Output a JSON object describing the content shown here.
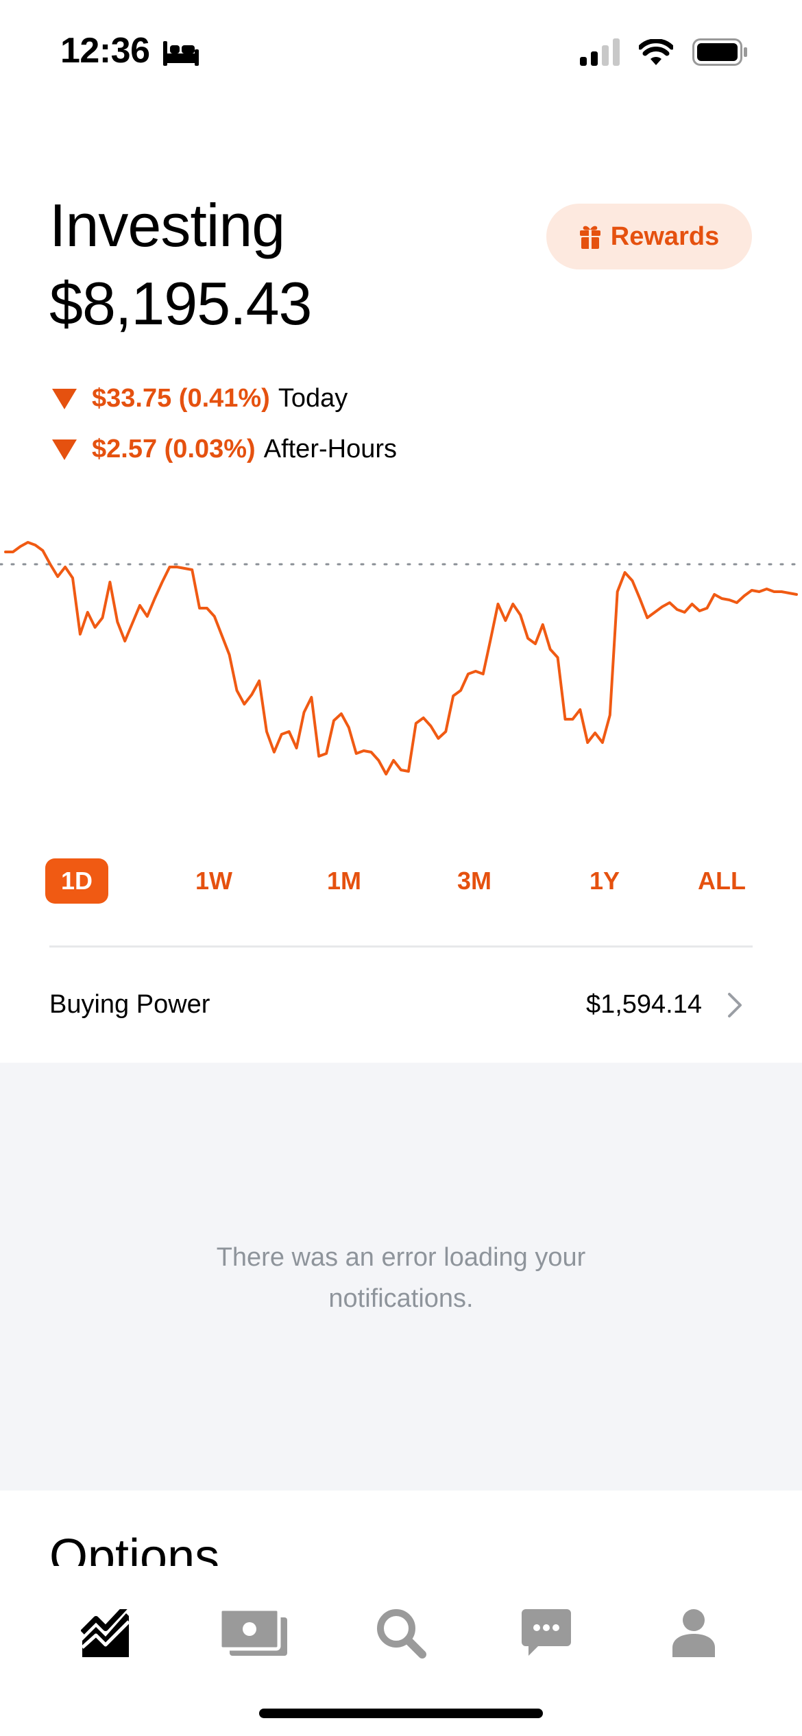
{
  "status_bar": {
    "time": "12:36",
    "focus_icon": "bed-icon",
    "signal_icon": "cellular-signal-icon",
    "wifi_icon": "wifi-icon",
    "battery_icon": "battery-icon"
  },
  "header": {
    "title": "Investing",
    "portfolio_value": "$8,195.43",
    "rewards_label": "Rewards",
    "rewards_icon": "gift-icon"
  },
  "changes": [
    {
      "amount": "$33.75 (0.41%)",
      "label": "Today",
      "direction": "down"
    },
    {
      "amount": "$2.57 (0.03%)",
      "label": "After-Hours",
      "direction": "down"
    }
  ],
  "chart_data": {
    "type": "line",
    "values": [
      18.5,
      18.5,
      18.9,
      19.2,
      19.0,
      18.6,
      17.6,
      16.7,
      17.4,
      16.6,
      12.5,
      14.1,
      13.0,
      13.7,
      16.3,
      13.4,
      12.0,
      13.3,
      14.6,
      13.8,
      15.1,
      16.3,
      17.4,
      17.4,
      17.3,
      17.2,
      14.4,
      14.4,
      13.8,
      12.4,
      11.0,
      8.4,
      7.4,
      8.1,
      9.1,
      5.4,
      3.9,
      5.2,
      5.4,
      4.2,
      6.8,
      7.9,
      3.6,
      3.8,
      6.2,
      6.7,
      5.7,
      3.8,
      4.0,
      3.9,
      3.3,
      2.3,
      3.3,
      2.6,
      2.5,
      6.0,
      6.4,
      5.8,
      4.9,
      5.4,
      8.0,
      8.4,
      9.6,
      9.8,
      9.6,
      12.1,
      14.7,
      13.5,
      14.7,
      13.9,
      12.2,
      11.8,
      13.2,
      11.4,
      10.8,
      6.3,
      6.3,
      7.0,
      4.6,
      5.3,
      4.6,
      6.6,
      15.6,
      17.0,
      16.4,
      15.1,
      13.7,
      14.1,
      14.5,
      14.8,
      14.3,
      14.1,
      14.7,
      14.2,
      14.4,
      15.4,
      15.1,
      15.0,
      14.8,
      15.3,
      15.7,
      15.6,
      15.8,
      15.6,
      15.6,
      15.5,
      15.4
    ],
    "previous_close_value": 17.6,
    "line_color": "#f05a13",
    "baseline_color": "#8a8f96",
    "grid": false
  },
  "ranges": {
    "selected": "1D",
    "items": [
      "1D",
      "1W",
      "1M",
      "3M",
      "1Y",
      "ALL"
    ]
  },
  "buying_power": {
    "label": "Buying Power",
    "value": "$1,594.14",
    "chevron_icon": "chevron-right-icon"
  },
  "notifications": {
    "message_line1": "There was an error loading your",
    "message_line2": "notifications."
  },
  "options": {
    "heading": "Options"
  },
  "tab_bar": {
    "items": [
      {
        "icon": "investing-chart-icon",
        "active": true
      },
      {
        "icon": "cash-icon",
        "active": false
      },
      {
        "icon": "search-icon",
        "active": false
      },
      {
        "icon": "messages-icon",
        "active": false
      },
      {
        "icon": "account-icon",
        "active": false
      }
    ]
  },
  "colors": {
    "accent": "#f05a13",
    "accent_text": "#e5510f",
    "rewards_bg": "#fde9df",
    "muted_text": "#8e949b",
    "notif_bg": "#f4f5f8",
    "inactive_icon": "#9a9a9a"
  }
}
